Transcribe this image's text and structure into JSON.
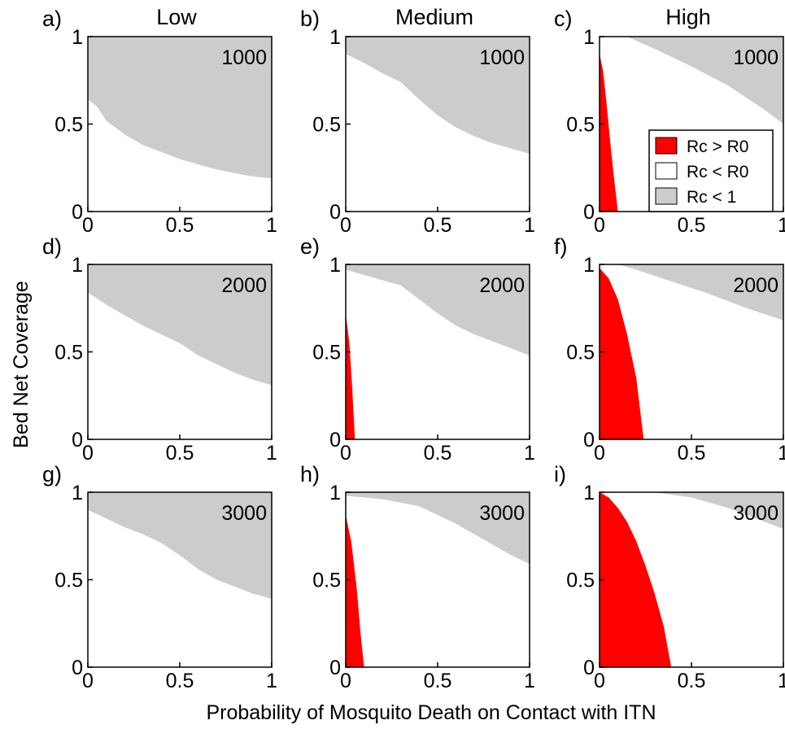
{
  "column_titles": [
    "Low",
    "Medium",
    "High"
  ],
  "y_axis_title": "Bed Net Coverage",
  "x_axis_title": "Probability of Mosquito Death on Contact with ITN",
  "legend": [
    {
      "label": "Rc > R0",
      "color": "#ff0000"
    },
    {
      "label": "Rc < R0",
      "color": "#ffffff"
    },
    {
      "label": "Rc < 1",
      "color": "#cccccc"
    }
  ],
  "colors": {
    "red_region": "#ff0000",
    "white_region": "#ffffff",
    "gray_region": "#cccccc",
    "axes": "#000000"
  },
  "chart_data": [
    {
      "type": "area",
      "panel": "a)",
      "column": "Low",
      "inner_label": "1000",
      "xlim": [
        0,
        1
      ],
      "ylim": [
        0,
        1
      ],
      "x_ticks": [
        "0",
        "0.5",
        "1"
      ],
      "y_ticks": [
        "0",
        "0.5",
        "1"
      ],
      "gray_boundary": [
        [
          0,
          0.64
        ],
        [
          0.05,
          0.6
        ],
        [
          0.1,
          0.52
        ],
        [
          0.2,
          0.44
        ],
        [
          0.3,
          0.38
        ],
        [
          0.4,
          0.34
        ],
        [
          0.5,
          0.3
        ],
        [
          0.6,
          0.27
        ],
        [
          0.7,
          0.24
        ],
        [
          0.8,
          0.22
        ],
        [
          0.9,
          0.2
        ],
        [
          1,
          0.19
        ]
      ],
      "red_boundary": []
    },
    {
      "type": "area",
      "panel": "b)",
      "column": "Medium",
      "inner_label": "1000",
      "xlim": [
        0,
        1
      ],
      "ylim": [
        0,
        1
      ],
      "x_ticks": [
        "0",
        "0.5",
        "1"
      ],
      "y_ticks": [
        "0",
        "0.5",
        "1"
      ],
      "gray_boundary": [
        [
          0,
          0.9
        ],
        [
          0.1,
          0.85
        ],
        [
          0.2,
          0.79
        ],
        [
          0.3,
          0.74
        ],
        [
          0.4,
          0.64
        ],
        [
          0.5,
          0.55
        ],
        [
          0.6,
          0.48
        ],
        [
          0.7,
          0.43
        ],
        [
          0.8,
          0.39
        ],
        [
          0.9,
          0.36
        ],
        [
          1,
          0.33
        ]
      ],
      "red_boundary": []
    },
    {
      "type": "area",
      "panel": "c)",
      "column": "High",
      "inner_label": "1000",
      "xlim": [
        0,
        1
      ],
      "ylim": [
        0,
        1
      ],
      "x_ticks": [
        "0",
        "0.5",
        "1"
      ],
      "y_ticks": [
        "0",
        "0.5",
        "1"
      ],
      "gray_boundary": [
        [
          0.08,
          1
        ],
        [
          0.15,
          1
        ],
        [
          0.3,
          0.93
        ],
        [
          0.5,
          0.83
        ],
        [
          0.7,
          0.72
        ],
        [
          0.9,
          0.58
        ],
        [
          1,
          0.5
        ]
      ],
      "red_boundary": [
        [
          0,
          0.9
        ],
        [
          0.02,
          0.8
        ],
        [
          0.04,
          0.6
        ],
        [
          0.06,
          0.38
        ],
        [
          0.08,
          0.18
        ],
        [
          0.1,
          0
        ]
      ]
    },
    {
      "type": "area",
      "panel": "d)",
      "column": "Low",
      "inner_label": "2000",
      "xlim": [
        0,
        1
      ],
      "ylim": [
        0,
        1
      ],
      "x_ticks": [
        "0",
        "0.5",
        "1"
      ],
      "y_ticks": [
        "0",
        "0.5",
        "1"
      ],
      "gray_boundary": [
        [
          0,
          0.84
        ],
        [
          0.1,
          0.77
        ],
        [
          0.2,
          0.71
        ],
        [
          0.3,
          0.65
        ],
        [
          0.4,
          0.6
        ],
        [
          0.5,
          0.55
        ],
        [
          0.6,
          0.48
        ],
        [
          0.7,
          0.43
        ],
        [
          0.8,
          0.38
        ],
        [
          0.9,
          0.34
        ],
        [
          1,
          0.31
        ]
      ],
      "red_boundary": []
    },
    {
      "type": "area",
      "panel": "e)",
      "column": "Medium",
      "inner_label": "2000",
      "xlim": [
        0,
        1
      ],
      "ylim": [
        0,
        1
      ],
      "x_ticks": [
        "0",
        "0.5",
        "1"
      ],
      "y_ticks": [
        "0",
        "0.5",
        "1"
      ],
      "gray_boundary": [
        [
          0,
          0.97
        ],
        [
          0.1,
          0.94
        ],
        [
          0.2,
          0.91
        ],
        [
          0.3,
          0.88
        ],
        [
          0.4,
          0.8
        ],
        [
          0.5,
          0.72
        ],
        [
          0.6,
          0.65
        ],
        [
          0.7,
          0.6
        ],
        [
          0.8,
          0.56
        ],
        [
          0.9,
          0.52
        ],
        [
          1,
          0.48
        ]
      ],
      "red_boundary": [
        [
          0,
          0.72
        ],
        [
          0.02,
          0.55
        ],
        [
          0.035,
          0.3
        ],
        [
          0.05,
          0
        ]
      ]
    },
    {
      "type": "area",
      "panel": "f)",
      "column": "High",
      "inner_label": "2000",
      "xlim": [
        0,
        1
      ],
      "ylim": [
        0,
        1
      ],
      "x_ticks": [
        "0",
        "0.5",
        "1"
      ],
      "y_ticks": [
        "0",
        "0.5",
        "1"
      ],
      "gray_boundary": [
        [
          0.1,
          1
        ],
        [
          0.2,
          0.97
        ],
        [
          0.4,
          0.9
        ],
        [
          0.6,
          0.83
        ],
        [
          0.8,
          0.75
        ],
        [
          1,
          0.68
        ]
      ],
      "red_boundary": [
        [
          0,
          0.98
        ],
        [
          0.05,
          0.92
        ],
        [
          0.1,
          0.8
        ],
        [
          0.15,
          0.6
        ],
        [
          0.2,
          0.35
        ],
        [
          0.24,
          0
        ]
      ]
    },
    {
      "type": "area",
      "panel": "g)",
      "column": "Low",
      "inner_label": "3000",
      "xlim": [
        0,
        1
      ],
      "ylim": [
        0,
        1
      ],
      "x_ticks": [
        "0",
        "0.5",
        "1"
      ],
      "y_ticks": [
        "0",
        "0.5",
        "1"
      ],
      "gray_boundary": [
        [
          0,
          0.9
        ],
        [
          0.1,
          0.85
        ],
        [
          0.2,
          0.8
        ],
        [
          0.3,
          0.76
        ],
        [
          0.4,
          0.71
        ],
        [
          0.5,
          0.64
        ],
        [
          0.6,
          0.56
        ],
        [
          0.7,
          0.5
        ],
        [
          0.8,
          0.46
        ],
        [
          0.9,
          0.42
        ],
        [
          1,
          0.39
        ]
      ],
      "red_boundary": []
    },
    {
      "type": "area",
      "panel": "h)",
      "column": "Medium",
      "inner_label": "3000",
      "xlim": [
        0,
        1
      ],
      "ylim": [
        0,
        1
      ],
      "x_ticks": [
        "0",
        "0.5",
        "1"
      ],
      "y_ticks": [
        "0",
        "0.5",
        "1"
      ],
      "gray_boundary": [
        [
          0,
          0.98
        ],
        [
          0.2,
          0.96
        ],
        [
          0.4,
          0.92
        ],
        [
          0.5,
          0.87
        ],
        [
          0.6,
          0.82
        ],
        [
          0.7,
          0.76
        ],
        [
          0.8,
          0.7
        ],
        [
          0.9,
          0.64
        ],
        [
          1,
          0.59
        ]
      ],
      "red_boundary": [
        [
          0,
          0.87
        ],
        [
          0.03,
          0.72
        ],
        [
          0.06,
          0.45
        ],
        [
          0.08,
          0.2
        ],
        [
          0.1,
          0
        ]
      ]
    },
    {
      "type": "area",
      "panel": "i)",
      "column": "High",
      "inner_label": "3000",
      "xlim": [
        0,
        1
      ],
      "ylim": [
        0,
        1
      ],
      "x_ticks": [
        "0",
        "0.5",
        "1"
      ],
      "y_ticks": [
        "0",
        "0.5",
        "1"
      ],
      "gray_boundary": [
        [
          0.3,
          1
        ],
        [
          0.5,
          0.97
        ],
        [
          0.7,
          0.91
        ],
        [
          0.85,
          0.85
        ],
        [
          1,
          0.79
        ]
      ],
      "red_boundary": [
        [
          0,
          1
        ],
        [
          0.05,
          0.97
        ],
        [
          0.1,
          0.91
        ],
        [
          0.15,
          0.83
        ],
        [
          0.2,
          0.72
        ],
        [
          0.25,
          0.58
        ],
        [
          0.3,
          0.42
        ],
        [
          0.35,
          0.23
        ],
        [
          0.39,
          0
        ]
      ]
    }
  ]
}
